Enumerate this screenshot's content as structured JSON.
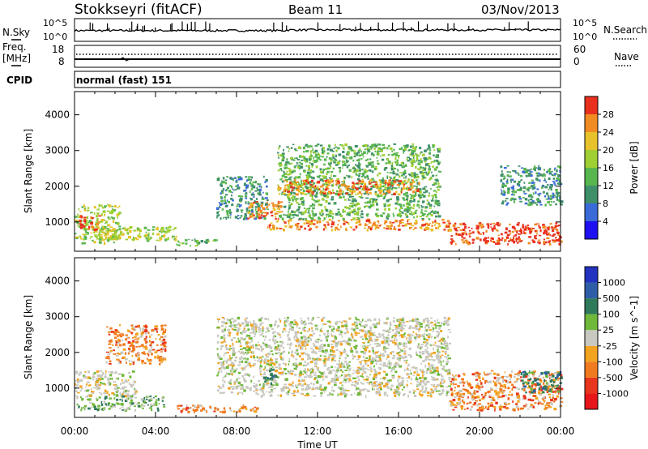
{
  "header": {
    "station": "Stokkseyri (fitACF)",
    "beam": "Beam 11",
    "date": "03/Nov/2013"
  },
  "noise_panel": {
    "left_label": "N.Sky",
    "right_label": "N.Search",
    "left_ticks": [
      "10^5",
      "10^0"
    ],
    "right_ticks": [
      "10^5",
      "10^0"
    ]
  },
  "freq_panel": {
    "left_label": "Freq.",
    "left_unit": "[MHz]",
    "right_label": "Nave",
    "left_ticks": [
      "18",
      "8"
    ],
    "right_ticks": [
      "60",
      "0"
    ]
  },
  "cpid_panel": {
    "label": "CPID",
    "value": "normal (fast) 151"
  },
  "x_axis": {
    "label": "Time UT",
    "ticks": [
      "00:00",
      "04:00",
      "08:00",
      "12:00",
      "16:00",
      "20:00",
      "00:00"
    ]
  },
  "chart_data": [
    {
      "type": "heatmap",
      "panel": "power",
      "xlabel": "Time UT",
      "ylabel": "Slant Range [km]",
      "y_ticks": [
        1000,
        2000,
        3000,
        4000
      ],
      "ylim": [
        180,
        4650
      ],
      "xlim_hours": [
        0,
        24
      ],
      "colorbar": {
        "label": "Power [dB]",
        "ticks": [
          "4",
          "8",
          "12",
          "16",
          "20",
          "24",
          "28"
        ],
        "colors": [
          "#1e10f0",
          "#3a6ad8",
          "#3f8f6a",
          "#59b64f",
          "#9fcf33",
          "#e7c22b",
          "#f08c22",
          "#e8301d"
        ]
      },
      "regions": [
        {
          "t": [
            0,
            2.2
          ],
          "r": [
            400,
            1500
          ],
          "level": 16
        },
        {
          "t": [
            1.0,
            5.0
          ],
          "r": [
            500,
            900
          ],
          "level": 14
        },
        {
          "t": [
            0.2,
            1.2
          ],
          "r": [
            800,
            1200
          ],
          "level": 26
        },
        {
          "t": [
            5.0,
            7.0
          ],
          "r": [
            350,
            550
          ],
          "level": 12
        },
        {
          "t": [
            7.0,
            9.5
          ],
          "r": [
            1100,
            2300
          ],
          "level": 8
        },
        {
          "t": [
            8.5,
            10.2
          ],
          "r": [
            1100,
            1600
          ],
          "level": 24
        },
        {
          "t": [
            9.5,
            18.5
          ],
          "r": [
            800,
            1100
          ],
          "level": 24
        },
        {
          "t": [
            10.0,
            18.0
          ],
          "r": [
            1100,
            3200
          ],
          "level": 12
        },
        {
          "t": [
            10.0,
            17.0
          ],
          "r": [
            1800,
            2200
          ],
          "level": 22
        },
        {
          "t": [
            18.5,
            24
          ],
          "r": [
            400,
            1000
          ],
          "level": 26
        },
        {
          "t": [
            21.0,
            24
          ],
          "r": [
            1500,
            2600
          ],
          "level": 8
        }
      ]
    },
    {
      "type": "heatmap",
      "panel": "velocity",
      "xlabel": "Time UT",
      "ylabel": "Slant Range [km]",
      "y_ticks": [
        1000,
        2000,
        3000,
        4000
      ],
      "ylim": [
        180,
        4650
      ],
      "xlim_hours": [
        0,
        24
      ],
      "colorbar": {
        "label": "Velocity [m s^-1]",
        "ticks": [
          "1000",
          "500",
          "100",
          "25",
          "-25",
          "-100",
          "-500",
          "-1000"
        ],
        "colors": [
          "#2233c0",
          "#2f5ea8",
          "#2f7a5a",
          "#6fb83a",
          "#c8c8c0",
          "#f2a320",
          "#f07a20",
          "#e8351d",
          "#e6161b"
        ]
      },
      "regions": [
        {
          "t": [
            0,
            3.0
          ],
          "r": [
            800,
            1500
          ],
          "level": "gray"
        },
        {
          "t": [
            0,
            4.5
          ],
          "r": [
            400,
            800
          ],
          "level": "green"
        },
        {
          "t": [
            1.5,
            4.5
          ],
          "r": [
            1700,
            2800
          ],
          "level": "orange"
        },
        {
          "t": [
            5.0,
            9.0
          ],
          "r": [
            350,
            550
          ],
          "level": "orange"
        },
        {
          "t": [
            7.0,
            18.5
          ],
          "r": [
            800,
            3000
          ],
          "level": "gray"
        },
        {
          "t": [
            9.3,
            10.0
          ],
          "r": [
            1100,
            1600
          ],
          "level": "teal"
        },
        {
          "t": [
            18.5,
            24
          ],
          "r": [
            400,
            1500
          ],
          "level": "orange"
        },
        {
          "t": [
            22.0,
            24
          ],
          "r": [
            900,
            1500
          ],
          "level": "teal"
        }
      ]
    }
  ]
}
